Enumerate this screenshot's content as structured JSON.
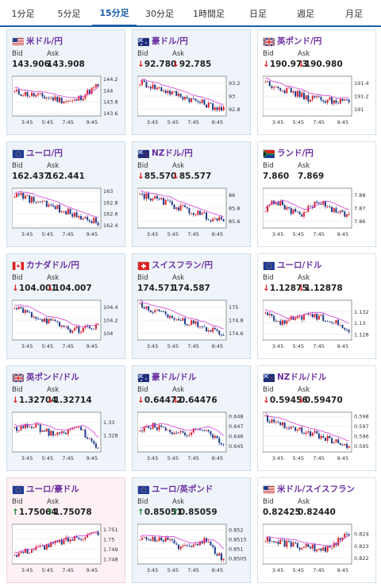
{
  "tabs": [
    {
      "label": "1分足",
      "active": false
    },
    {
      "label": "5分足",
      "active": false
    },
    {
      "label": "15分足",
      "active": true
    },
    {
      "label": "30分足",
      "active": false
    },
    {
      "label": "1時間足",
      "active": false
    },
    {
      "label": "日足",
      "active": false
    },
    {
      "label": "週足",
      "active": false
    },
    {
      "label": "月足",
      "active": false
    }
  ],
  "labels": {
    "bid": "Bid",
    "ask": "Ask"
  },
  "x_ticks": [
    "3:45",
    "5:45",
    "7:45",
    "9:45"
  ],
  "pairs": [
    {
      "name": "米ドル/円",
      "flag": "us",
      "bid": "143.906",
      "ask": "143.908",
      "dir": "",
      "yticks": [
        "144.2",
        "144",
        "143.8",
        "143.6"
      ],
      "ylim": [
        143.55,
        144.25
      ],
      "trend": "dip-rise",
      "style": "blue"
    },
    {
      "name": "豪ドル/円",
      "flag": "au",
      "bid": "92.780",
      "ask": "92.785",
      "dir": "down",
      "yticks": [
        "93.2",
        "93",
        "92.8"
      ],
      "ylim": [
        92.7,
        93.3
      ],
      "trend": "down",
      "style": "blue"
    },
    {
      "name": "英ポンド/円",
      "flag": "gb",
      "bid": "190.973",
      "ask": "190.980",
      "dir": "down",
      "yticks": [
        "191.4",
        "191.2",
        "191"
      ],
      "ylim": [
        190.9,
        191.5
      ],
      "trend": "down-flat",
      "style": "white"
    },
    {
      "name": "ユーロ/円",
      "flag": "eu",
      "bid": "162.437",
      "ask": "162.441",
      "dir": "",
      "yticks": [
        "163",
        "162.8",
        "162.6",
        "162.4"
      ],
      "ylim": [
        162.35,
        163.05
      ],
      "trend": "down",
      "style": "blue"
    },
    {
      "name": "NZドル/円",
      "flag": "nz",
      "bid": "85.570",
      "ask": "85.577",
      "dir": "down",
      "yticks": [
        "86",
        "85.8",
        "85.6"
      ],
      "ylim": [
        85.5,
        86.1
      ],
      "trend": "down",
      "style": "blue"
    },
    {
      "name": "ランド/円",
      "flag": "za",
      "bid": "7.860",
      "ask": "7.869",
      "dir": "",
      "yticks": [
        "7.88",
        "7.87",
        "7.86"
      ],
      "ylim": [
        7.855,
        7.885
      ],
      "trend": "choppy",
      "style": "white"
    },
    {
      "name": "カナダドル/円",
      "flag": "ca",
      "bid": "104.001",
      "ask": "104.007",
      "dir": "down",
      "yticks": [
        "104.4",
        "104.2",
        "104"
      ],
      "ylim": [
        103.9,
        104.5
      ],
      "trend": "down-rise",
      "style": "blue"
    },
    {
      "name": "スイスフラン/円",
      "flag": "ch",
      "bid": "174.571",
      "ask": "174.587",
      "dir": "",
      "yticks": [
        "175",
        "174.8",
        "174.6"
      ],
      "ylim": [
        174.5,
        175.1
      ],
      "trend": "down",
      "style": "blue"
    },
    {
      "name": "ユーロ/ドル",
      "flag": "eu",
      "bid": "1.12875",
      "ask": "1.12878",
      "dir": "down",
      "yticks": [
        "1.132",
        "1.13",
        "1.128"
      ],
      "ylim": [
        1.127,
        1.134
      ],
      "trend": "dip-flat",
      "style": "white"
    },
    {
      "name": "英ポンド/ドル",
      "flag": "gb",
      "bid": "1.32704",
      "ask": "1.32714",
      "dir": "down",
      "yticks": [
        "1.33",
        "1.328"
      ],
      "ylim": [
        1.3255,
        1.3315
      ],
      "trend": "flat-drop",
      "style": "blue"
    },
    {
      "name": "豪ドル/ドル",
      "flag": "au",
      "bid": "0.64472",
      "ask": "0.64476",
      "dir": "down",
      "yticks": [
        "0.648",
        "0.647",
        "0.646",
        "0.645"
      ],
      "ylim": [
        0.6444,
        0.6484
      ],
      "trend": "flat-drop",
      "style": "blue"
    },
    {
      "name": "NZドル/ドル",
      "flag": "nz",
      "bid": "0.59456",
      "ask": "0.59470",
      "dir": "down",
      "yticks": [
        "0.598",
        "0.597",
        "0.596",
        "0.595"
      ],
      "ylim": [
        0.5944,
        0.5984
      ],
      "trend": "down",
      "style": "white"
    },
    {
      "name": "ユーロ/豪ドル",
      "flag": "eu",
      "bid": "1.75064",
      "ask": "1.75078",
      "dir": "up",
      "yticks": [
        "1.751",
        "1.75",
        "1.749",
        "1.748"
      ],
      "ylim": [
        1.7475,
        1.7515
      ],
      "trend": "up",
      "style": "pink"
    },
    {
      "name": "ユーロ/英ポンド",
      "flag": "eu",
      "bid": "0.85051",
      "ask": "0.85059",
      "dir": "up",
      "yticks": [
        "0.852",
        "0.8515",
        "0.851",
        "0.8505"
      ],
      "ylim": [
        0.8502,
        0.8523
      ],
      "trend": "flat-drop",
      "style": "blue"
    },
    {
      "name": "米ドル/スイスフラン",
      "flag": "us",
      "bid": "0.82425",
      "ask": "0.82440",
      "dir": "",
      "yticks": [
        "0.824",
        "0.823",
        "0.822"
      ],
      "ylim": [
        0.8215,
        0.8248
      ],
      "trend": "dip-rise",
      "style": "white"
    }
  ],
  "colors": {
    "accent": "#1c5fa8",
    "pair_name": "#6b2fa0",
    "candle_up": "#d9232d",
    "candle_down": "#1e3a8a",
    "ma_line": "#d63ad6",
    "down_arrow": "#d22222",
    "up_arrow": "#1e8a3c"
  }
}
